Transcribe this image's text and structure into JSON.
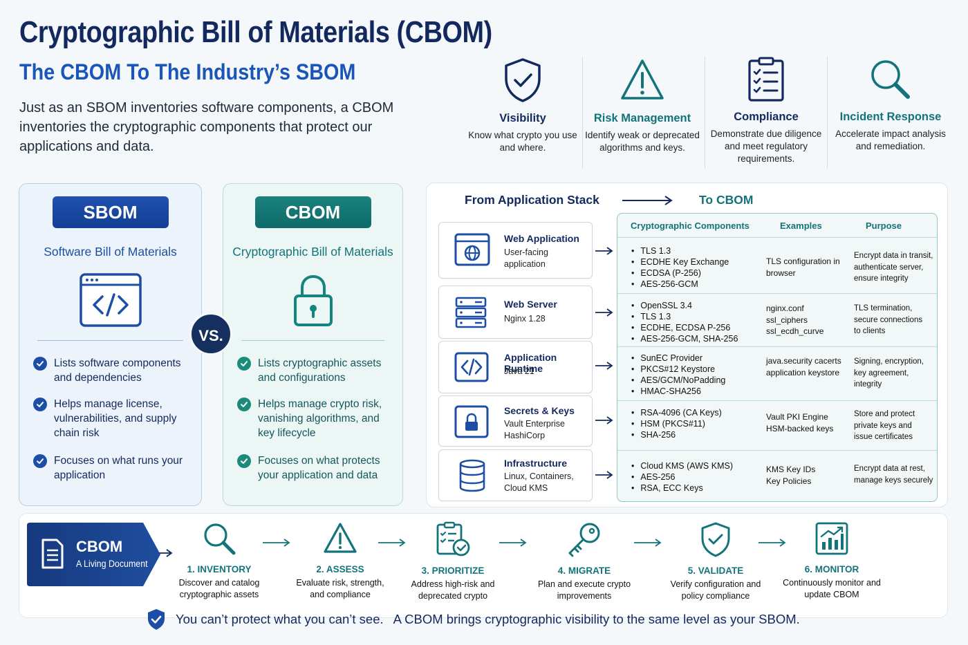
{
  "header": {
    "title": "Cryptographic Bill of Materials (CBOM)",
    "subtitle": "The CBOM To The Industry’s SBOM",
    "intro": "Just as an SBOM inventories software components, a CBOM inventories the cryptographic components that protect our applications and data."
  },
  "benefits": [
    {
      "icon": "shield-check-icon",
      "title": "Visibility",
      "desc": "Know what crypto you use and where."
    },
    {
      "icon": "warning-triangle-icon",
      "title": "Risk Management",
      "desc": "Identify weak or deprecated algorithms and keys."
    },
    {
      "icon": "checklist-clipboard-icon",
      "title": "Compliance",
      "desc": "Demonstrate due diligence and meet regulatory requirements."
    },
    {
      "icon": "magnifier-icon",
      "title": "Incident Response",
      "desc": "Accelerate impact analysis and remediation."
    }
  ],
  "sbom": {
    "label": "SBOM",
    "subtitle": "Software Bill of Materials",
    "icon": "code-window-icon",
    "bullets": [
      "Lists software components and dependencies",
      "Helps manage license, vulnerabilities, and supply chain risk",
      "Focuses on what runs your application"
    ]
  },
  "vs": "VS.",
  "cbom": {
    "label": "CBOM",
    "subtitle": "Cryptographic Bill of Materials",
    "icon": "padlock-icon",
    "bullets": [
      "Lists cryptographic assets and configurations",
      "Helps manage crypto risk, vanishing algorithms, and key lifecycle",
      "Focuses on what protects your application and data"
    ]
  },
  "mapping": {
    "from_label": "From Application Stack",
    "to_label": "To CBOM",
    "columns": [
      "Cryptographic Components",
      "Examples",
      "Purpose"
    ],
    "rows": [
      {
        "name": "Web Application",
        "desc": "User-facing application",
        "icon": "browser-globe-icon",
        "components": [
          "TLS 1.3",
          "ECDHE Key Exchange",
          "ECDSA (P-256)",
          "AES-256-GCM"
        ],
        "examples": "TLS configuration in browser",
        "purpose": "Encrypt data in transit, authenticate server, ensure integrity"
      },
      {
        "name": "Web Server",
        "desc": "Nginx 1.28",
        "icon": "server-rack-icon",
        "components": [
          "OpenSSL 3.4",
          "TLS 1.3",
          "ECDHE, ECDSA P-256",
          "AES-256-GCM, SHA-256"
        ],
        "examples": "nginx.conf ssl_ciphers ssl_ecdh_curve",
        "purpose": "TLS termination, secure connections to clients"
      },
      {
        "name": "Application Runtime",
        "desc": "Java 21",
        "icon": "code-brackets-icon",
        "components": [
          "SunEC Provider",
          "PKCS#12 Keystore",
          "AES/GCM/NoPadding",
          "HMAC-SHA256"
        ],
        "examples": "java.security cacerts application keystore",
        "purpose": "Signing, encryption, key agreement, integrity"
      },
      {
        "name": "Secrets & Keys",
        "desc": "Vault Enterprise HashiCorp",
        "icon": "vault-lock-icon",
        "components": [
          "RSA-4096 (CA Keys)",
          "HSM (PKCS#11)",
          "SHA-256"
        ],
        "examples": "Vault PKI Engine HSM-backed keys",
        "purpose": "Store and protect private keys and issue certificates"
      },
      {
        "name": "Infrastructure",
        "desc": "Linux, Containers, Cloud KMS",
        "icon": "database-icon",
        "components": [
          "Cloud KMS (AWS KMS)",
          "AES-256",
          "RSA, ECC Keys"
        ],
        "examples": "KMS Key IDs Key Policies",
        "purpose": "Encrypt data at rest, manage keys securely"
      }
    ]
  },
  "living": {
    "title": "CBOM",
    "desc": "A Living Document",
    "icon": "document-icon"
  },
  "steps": [
    {
      "title": "1. INVENTORY",
      "desc": "Discover and catalog cryptographic assets",
      "icon": "search-icon"
    },
    {
      "title": "2. ASSESS",
      "desc": "Evaluate risk, strength, and compliance",
      "icon": "alert-triangle-icon"
    },
    {
      "title": "3. PRIORITIZE",
      "desc": "Address high-risk and deprecated crypto",
      "icon": "clipboard-check-icon"
    },
    {
      "title": "4. MIGRATE",
      "desc": "Plan and execute crypto improvements",
      "icon": "key-icon"
    },
    {
      "title": "5. VALIDATE",
      "desc": "Verify configuration and policy compliance",
      "icon": "shield-check-icon"
    },
    {
      "title": "6. MONITOR",
      "desc": "Continuously monitor and update CBOM",
      "icon": "bar-chart-icon"
    }
  ],
  "footer": {
    "part1": "You can’t protect what you can’t see.",
    "part2": "A CBOM brings cryptographic visibility to the same level as your SBOM.",
    "icon": "shield-check-icon"
  },
  "colors": {
    "navy": "#13285e",
    "blue": "#1a56b8",
    "teal": "#13737a"
  }
}
